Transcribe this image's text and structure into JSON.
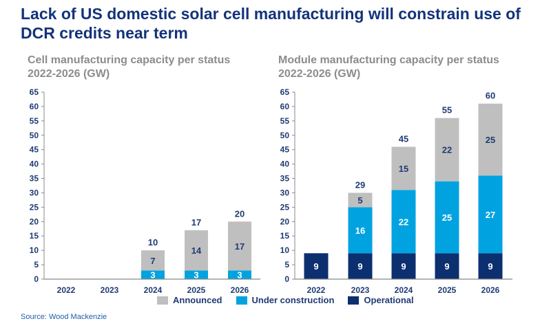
{
  "title": "Lack of US domestic solar cell manufacturing will constrain use of DCR credits near term",
  "source": "Source: Wood Mackenzie",
  "colors": {
    "Announced": "#bfbfbf",
    "Under construction": "#00a3e0",
    "Operational": "#0c2f6f",
    "text": "#1f3b73"
  },
  "legend": [
    "Announced",
    "Under construction",
    "Operational"
  ],
  "chart_data": [
    {
      "type": "bar",
      "stacked": true,
      "title": "Cell manufacturing capacity per status 2022-2026 (GW)",
      "categories": [
        "2022",
        "2023",
        "2024",
        "2025",
        "2026"
      ],
      "ylim": [
        0,
        65
      ],
      "yticks": [
        0,
        5,
        10,
        15,
        20,
        25,
        30,
        35,
        40,
        45,
        50,
        55,
        60,
        65
      ],
      "series": [
        {
          "name": "Operational",
          "values": [
            0,
            0,
            0,
            0,
            0
          ]
        },
        {
          "name": "Under construction",
          "values": [
            0,
            0,
            3,
            3,
            3
          ]
        },
        {
          "name": "Announced",
          "values": [
            0,
            0,
            7,
            14,
            17
          ]
        }
      ],
      "totals": [
        null,
        null,
        10,
        17,
        20
      ]
    },
    {
      "type": "bar",
      "stacked": true,
      "title": "Module manufacturing capacity per status 2022-2026 (GW)",
      "categories": [
        "2022",
        "2023",
        "2024",
        "2025",
        "2026"
      ],
      "ylim": [
        0,
        65
      ],
      "yticks": [
        0,
        5,
        10,
        15,
        20,
        25,
        30,
        35,
        40,
        45,
        50,
        55,
        60,
        65
      ],
      "series": [
        {
          "name": "Operational",
          "values": [
            9,
            9,
            9,
            9,
            9
          ]
        },
        {
          "name": "Under construction",
          "values": [
            0,
            16,
            22,
            25,
            27
          ]
        },
        {
          "name": "Announced",
          "values": [
            0,
            5,
            15,
            22,
            25
          ]
        }
      ],
      "totals": [
        null,
        29,
        45,
        55,
        60
      ]
    }
  ]
}
